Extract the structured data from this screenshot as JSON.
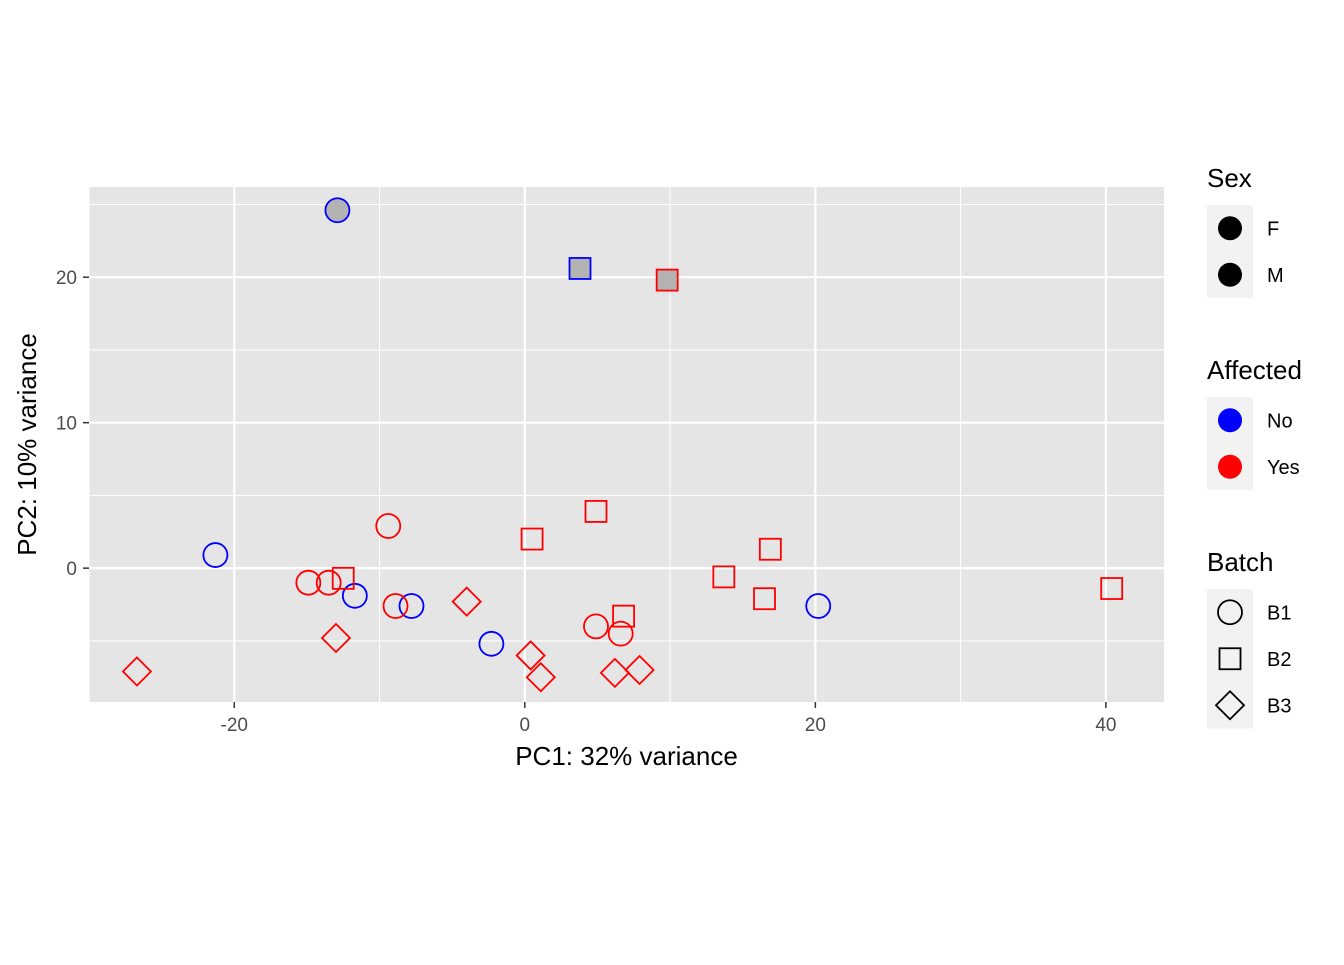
{
  "chart_data": {
    "type": "scatter",
    "title": "",
    "xlabel": "PC1: 32% variance",
    "ylabel": "PC2: 10% variance",
    "xlim": [
      -30,
      44
    ],
    "ylim": [
      -9.2,
      26.2
    ],
    "x_ticks": [
      -20,
      0,
      20,
      40
    ],
    "x_tick_labels": [
      "-20",
      "0",
      "20",
      "40"
    ],
    "y_ticks": [
      0,
      10,
      20
    ],
    "y_tick_labels": [
      "0",
      "10",
      "20"
    ],
    "grid": true,
    "panel_background": "#e5e5e5",
    "legend_placement": "right",
    "colors": {
      "No": "#0000ff",
      "Yes": "#ff0000",
      "M_fill": "#b3b3b3"
    },
    "legends": [
      {
        "title": "Sex",
        "kind": "sex",
        "entries": [
          {
            "label": "F",
            "key": "F"
          },
          {
            "label": "M",
            "key": "M"
          }
        ]
      },
      {
        "title": "Affected",
        "kind": "color",
        "entries": [
          {
            "label": "No",
            "key": "No"
          },
          {
            "label": "Yes",
            "key": "Yes"
          }
        ]
      },
      {
        "title": "Batch",
        "kind": "shape",
        "entries": [
          {
            "label": "B1",
            "key": "B1"
          },
          {
            "label": "B2",
            "key": "B2"
          },
          {
            "label": "B3",
            "key": "B3"
          }
        ]
      }
    ],
    "points": [
      {
        "x": -12.9,
        "y": 24.6,
        "sex": "M",
        "affected": "No",
        "batch": "B1"
      },
      {
        "x": 3.8,
        "y": 20.6,
        "sex": "M",
        "affected": "No",
        "batch": "B2"
      },
      {
        "x": 9.8,
        "y": 19.8,
        "sex": "M",
        "affected": "Yes",
        "batch": "B2"
      },
      {
        "x": -21.3,
        "y": 0.9,
        "sex": "F",
        "affected": "No",
        "batch": "B1"
      },
      {
        "x": -11.7,
        "y": -1.9,
        "sex": "F",
        "affected": "No",
        "batch": "B1"
      },
      {
        "x": -7.8,
        "y": -2.6,
        "sex": "F",
        "affected": "No",
        "batch": "B1"
      },
      {
        "x": -2.3,
        "y": -5.2,
        "sex": "F",
        "affected": "No",
        "batch": "B1"
      },
      {
        "x": 20.2,
        "y": -2.6,
        "sex": "F",
        "affected": "No",
        "batch": "B1"
      },
      {
        "x": -9.4,
        "y": 2.9,
        "sex": "F",
        "affected": "Yes",
        "batch": "B1"
      },
      {
        "x": -14.9,
        "y": -1.0,
        "sex": "F",
        "affected": "Yes",
        "batch": "B1"
      },
      {
        "x": -13.5,
        "y": -1.0,
        "sex": "F",
        "affected": "Yes",
        "batch": "B1"
      },
      {
        "x": -8.9,
        "y": -2.6,
        "sex": "F",
        "affected": "Yes",
        "batch": "B1"
      },
      {
        "x": 4.9,
        "y": -4.0,
        "sex": "F",
        "affected": "Yes",
        "batch": "B1"
      },
      {
        "x": 6.6,
        "y": -4.5,
        "sex": "F",
        "affected": "Yes",
        "batch": "B1"
      },
      {
        "x": -12.5,
        "y": -0.7,
        "sex": "F",
        "affected": "Yes",
        "batch": "B2"
      },
      {
        "x": 0.5,
        "y": 2.0,
        "sex": "F",
        "affected": "Yes",
        "batch": "B2"
      },
      {
        "x": 4.9,
        "y": 3.9,
        "sex": "F",
        "affected": "Yes",
        "batch": "B2"
      },
      {
        "x": 6.8,
        "y": -3.3,
        "sex": "F",
        "affected": "Yes",
        "batch": "B2"
      },
      {
        "x": 13.7,
        "y": -0.6,
        "sex": "F",
        "affected": "Yes",
        "batch": "B2"
      },
      {
        "x": 16.5,
        "y": -2.1,
        "sex": "F",
        "affected": "Yes",
        "batch": "B2"
      },
      {
        "x": 16.9,
        "y": 1.3,
        "sex": "F",
        "affected": "Yes",
        "batch": "B2"
      },
      {
        "x": 40.4,
        "y": -1.4,
        "sex": "F",
        "affected": "Yes",
        "batch": "B2"
      },
      {
        "x": -26.7,
        "y": -7.1,
        "sex": "F",
        "affected": "Yes",
        "batch": "B3"
      },
      {
        "x": -13.0,
        "y": -4.8,
        "sex": "F",
        "affected": "Yes",
        "batch": "B3"
      },
      {
        "x": -4.0,
        "y": -2.3,
        "sex": "F",
        "affected": "Yes",
        "batch": "B3"
      },
      {
        "x": 0.4,
        "y": -6.0,
        "sex": "F",
        "affected": "Yes",
        "batch": "B3"
      },
      {
        "x": 1.1,
        "y": -7.5,
        "sex": "F",
        "affected": "Yes",
        "batch": "B3"
      },
      {
        "x": 6.2,
        "y": -7.2,
        "sex": "F",
        "affected": "Yes",
        "batch": "B3"
      },
      {
        "x": 7.9,
        "y": -7.0,
        "sex": "F",
        "affected": "Yes",
        "batch": "B3"
      }
    ]
  }
}
